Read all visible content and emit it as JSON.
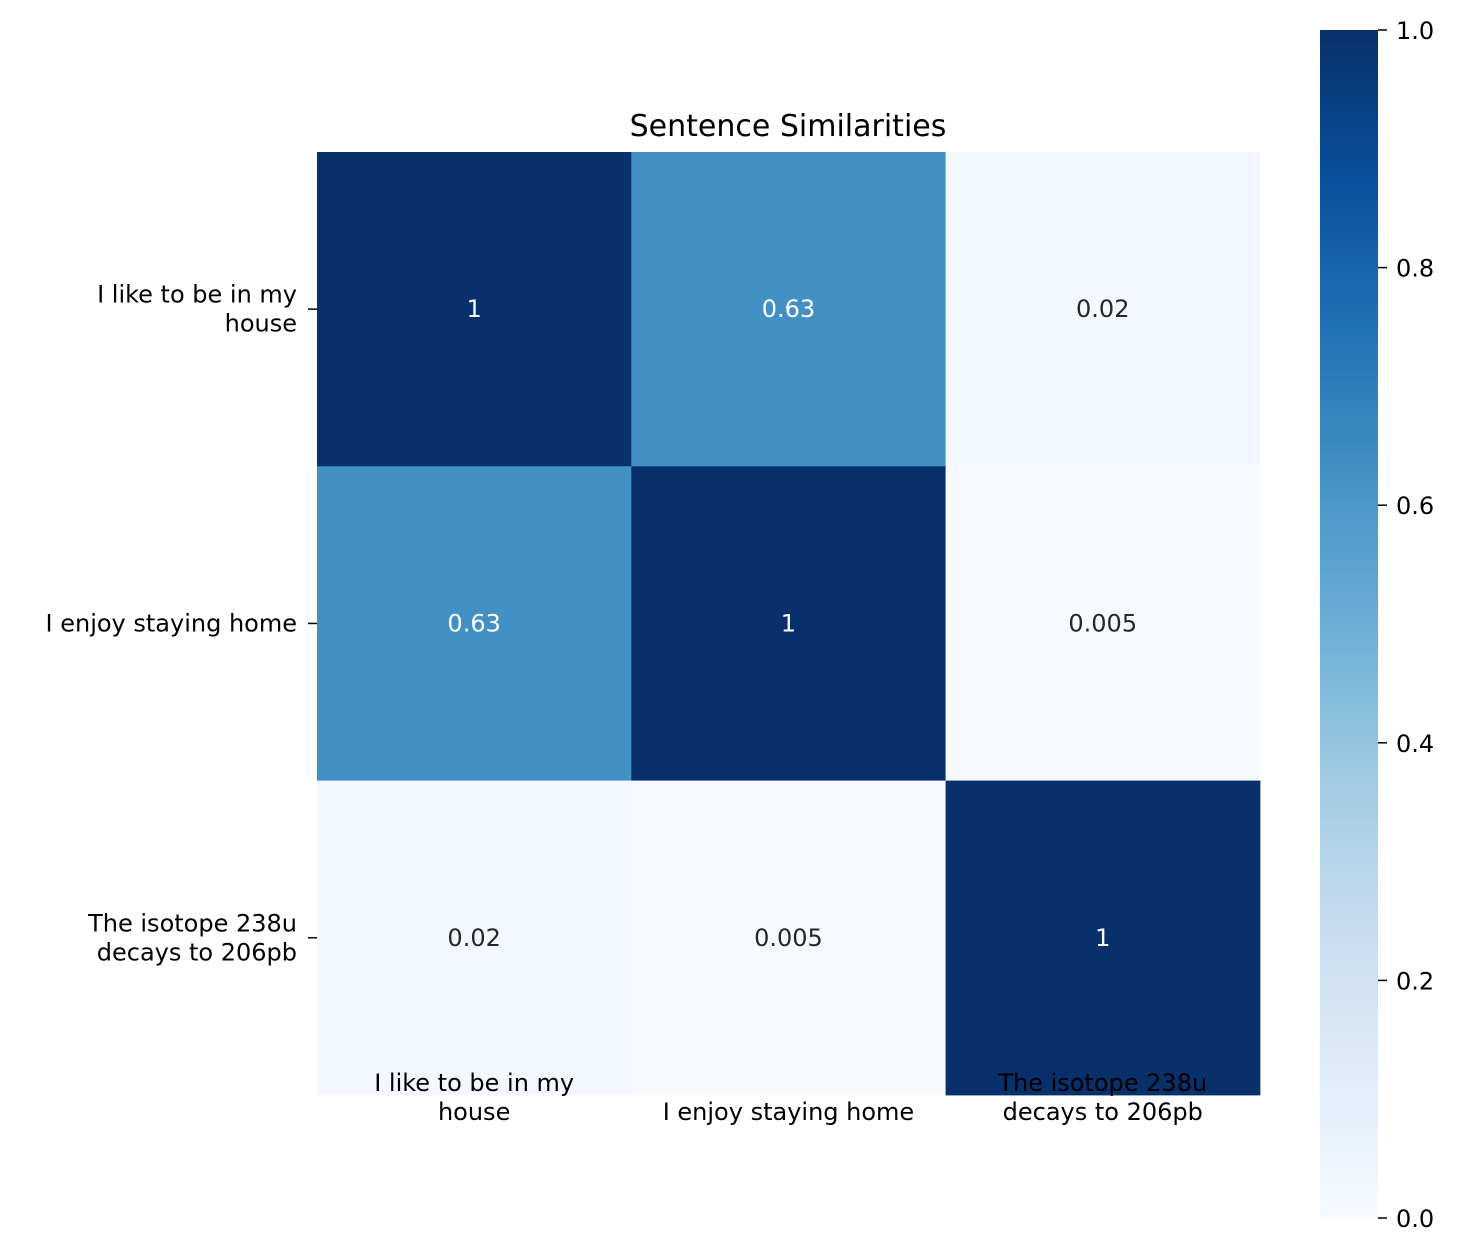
{
  "chart_data": {
    "type": "heatmap",
    "title": "Sentence Similarities",
    "row_labels": [
      [
        "I like to be in my",
        "house"
      ],
      [
        "I enjoy staying home"
      ],
      [
        "The isotope 238u",
        "decays to 206pb"
      ]
    ],
    "col_labels": [
      [
        "I like to be in my",
        "house"
      ],
      [
        "I enjoy staying home"
      ],
      [
        "The isotope 238u",
        "decays to 206pb"
      ]
    ],
    "values": [
      [
        1,
        0.63,
        0.02
      ],
      [
        0.63,
        1,
        0.005
      ],
      [
        0.02,
        0.005,
        1
      ]
    ],
    "annotations": [
      [
        "1",
        "0.63",
        "0.02"
      ],
      [
        "0.63",
        "1",
        "0.005"
      ],
      [
        "0.02",
        "0.005",
        "1"
      ]
    ],
    "colormap": "Blues",
    "colorbar": {
      "range": [
        0,
        1
      ],
      "ticks": [
        "0.0",
        "0.2",
        "0.4",
        "0.6",
        "0.8",
        "1.0"
      ]
    },
    "grid": false
  }
}
